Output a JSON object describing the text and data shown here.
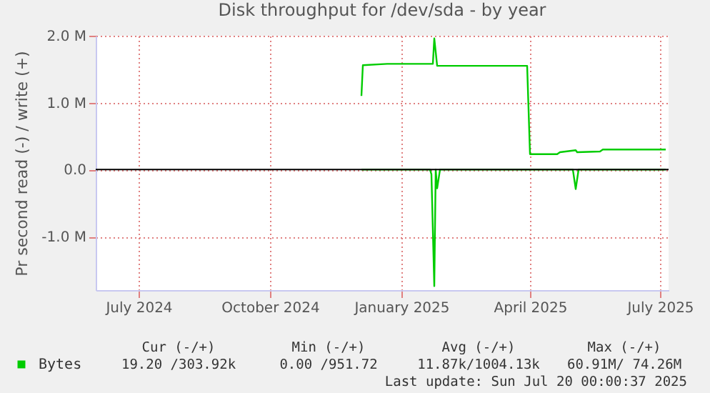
{
  "chart_data": {
    "type": "line",
    "title": "Disk throughput for /dev/sda - by year",
    "ylabel": "Pr second read (-) / write (+)",
    "xlim": [
      "2024-06-01",
      "2025-07-07"
    ],
    "xticks": [
      {
        "value": "2024-07-01",
        "label": "July 2024"
      },
      {
        "value": "2024-10-01",
        "label": "October 2024"
      },
      {
        "value": "2025-01-01",
        "label": "January 2025"
      },
      {
        "value": "2025-04-01",
        "label": "April 2025"
      },
      {
        "value": "2025-07-01",
        "label": "July 2025"
      }
    ],
    "ylim": [
      -1800000,
      2000000
    ],
    "yticks": [
      {
        "value": -1000000,
        "label": "-1.0 M"
      },
      {
        "value": 0,
        "label": "0.0"
      },
      {
        "value": 1000000,
        "label": "1.0 M"
      },
      {
        "value": 2000000,
        "label": "2.0 M"
      }
    ],
    "grid": true,
    "legend": "bottom",
    "ref_lines": [
      {
        "axis": "y",
        "value": 0,
        "color": "#000000"
      }
    ],
    "series": [
      {
        "name": "Bytes",
        "color": "#00cc00",
        "x": [
          "2024-12-04",
          "2024-12-05",
          "2024-12-22",
          "2025-01-23",
          "2025-01-24",
          "2025-01-26",
          "2025-03-30",
          "2025-04-01",
          "2025-04-20",
          "2025-04-22",
          "2025-05-03",
          "2025-05-04",
          "2025-05-20",
          "2025-05-22",
          "2025-07-05"
        ],
        "values": [
          1100000,
          1560000,
          1580000,
          1580000,
          1960000,
          1550000,
          1550000,
          230000,
          230000,
          260000,
          290000,
          260000,
          270000,
          300000,
          300000
        ]
      },
      {
        "color": "#00cc00",
        "x": [
          "2024-12-04",
          "2025-01-21",
          "2025-01-22",
          "2025-01-24",
          "2025-01-25",
          "2025-01-26",
          "2025-01-28",
          "2025-05-01",
          "2025-05-03",
          "2025-05-05",
          "2025-07-05"
        ],
        "values": [
          0,
          0,
          -70000,
          -1740000,
          0,
          -280000,
          0,
          0,
          -290000,
          0,
          0
        ]
      }
    ],
    "annotations": [
      "Cur (-/+)",
      "Min (-/+)",
      "Avg (-/+)",
      "Max (-/+)",
      "19.20 /303.92k",
      "0.00 /951.72",
      "11.87k/1004.13k",
      "60.91M/ 74.26M",
      "Last update: Sun Jul 20 00:00:37 2025"
    ]
  }
}
